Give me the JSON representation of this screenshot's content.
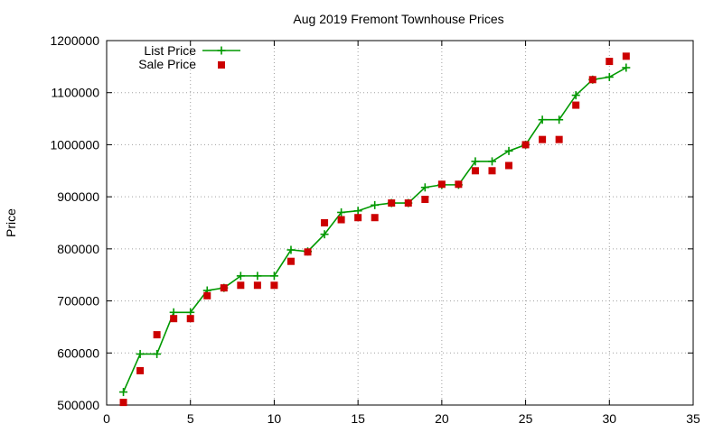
{
  "chart_data": {
    "type": "line",
    "title": "Aug 2019 Fremont Townhouse Prices",
    "xlabel": "",
    "ylabel": "Price",
    "xlim": [
      0,
      35
    ],
    "ylim": [
      500000,
      1200000
    ],
    "xticks": [
      0,
      5,
      10,
      15,
      20,
      25,
      30,
      35
    ],
    "yticks": [
      500000,
      600000,
      700000,
      800000,
      900000,
      1000000,
      1100000,
      1200000
    ],
    "grid": true,
    "legend_position": "top-left",
    "series": [
      {
        "name": "List Price",
        "style": "line+plus",
        "color": "#009900",
        "x": [
          1,
          2,
          3,
          4,
          5,
          6,
          7,
          8,
          9,
          10,
          11,
          12,
          13,
          14,
          15,
          16,
          17,
          18,
          19,
          20,
          21,
          22,
          23,
          24,
          25,
          26,
          27,
          28,
          29,
          30,
          31
        ],
        "y": [
          525000,
          598000,
          598000,
          678000,
          678000,
          720000,
          725000,
          748000,
          748000,
          748000,
          798000,
          795000,
          828000,
          870000,
          873000,
          884000,
          888000,
          888000,
          918000,
          923000,
          923000,
          968000,
          968000,
          988000,
          1000000,
          1048000,
          1048000,
          1095000,
          1125000,
          1130000,
          1148000
        ]
      },
      {
        "name": "Sale Price",
        "style": "square",
        "color": "#cc0000",
        "x": [
          1,
          2,
          3,
          4,
          5,
          6,
          7,
          8,
          9,
          10,
          11,
          12,
          13,
          14,
          15,
          16,
          17,
          18,
          19,
          20,
          21,
          22,
          23,
          24,
          25,
          26,
          27,
          28,
          29,
          30,
          31
        ],
        "y": [
          505000,
          566000,
          635000,
          666000,
          666000,
          710000,
          725000,
          730000,
          730000,
          730000,
          776000,
          794000,
          850000,
          856000,
          860000,
          860000,
          888000,
          888000,
          895000,
          924000,
          924000,
          950000,
          950000,
          960000,
          1000000,
          1010000,
          1010000,
          1076000,
          1125000,
          1160000,
          1170000
        ]
      }
    ]
  }
}
